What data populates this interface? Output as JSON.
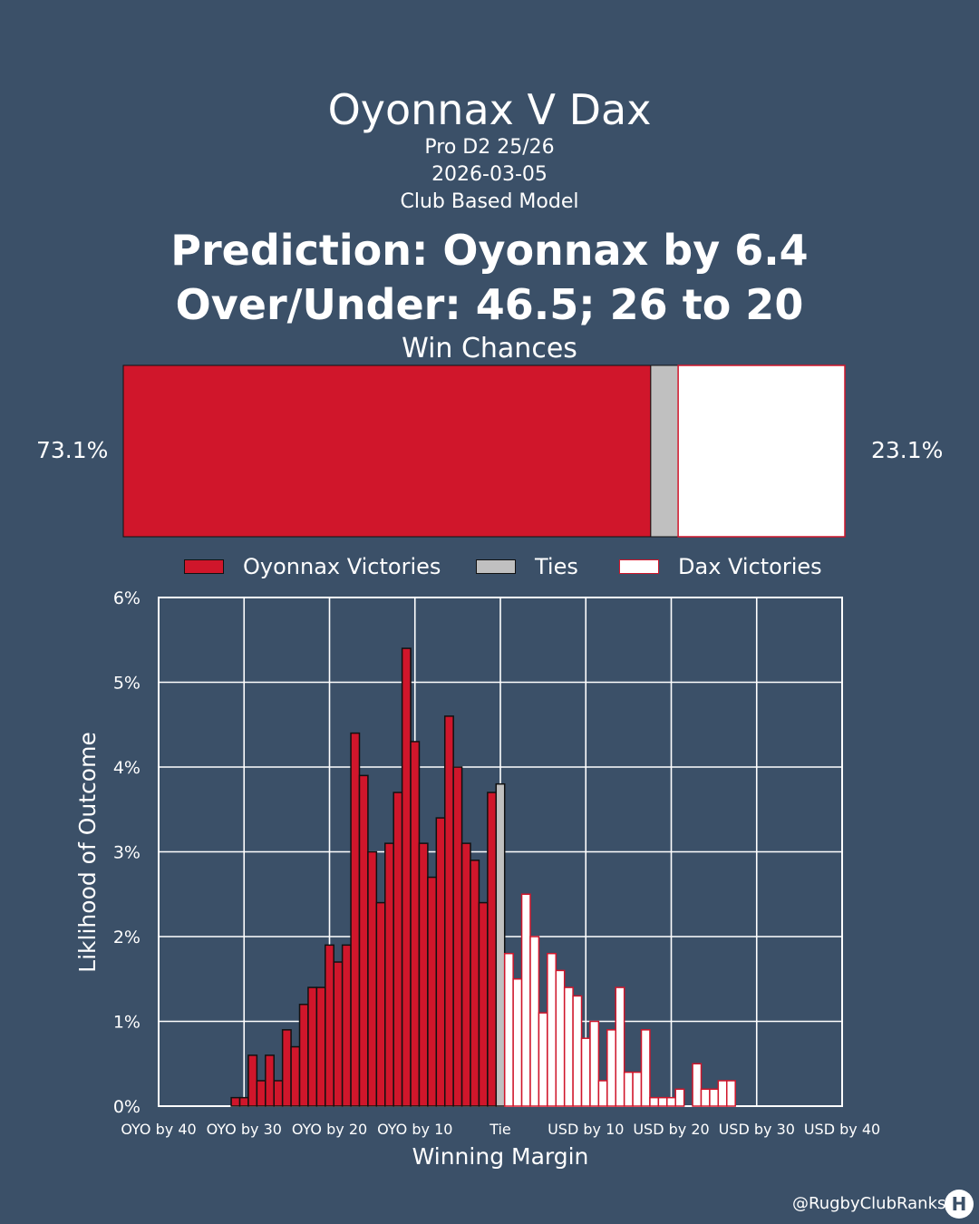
{
  "header": {
    "title": "Oyonnax V Dax",
    "competition": "Pro D2 25/26",
    "date": "2026-03-05",
    "model": "Club Based Model",
    "prediction": "Prediction: Oyonnax by 6.4",
    "over_under": "Over/Under: 46.5; 26 to 20"
  },
  "win_chances": {
    "title": "Win Chances",
    "home_pct": 73.1,
    "tie_pct": 3.8,
    "away_pct": 23.1,
    "home_label": "73.1%",
    "away_label": "23.1%"
  },
  "legend": {
    "home": "Oyonnax Victories",
    "tie": "Ties",
    "away": "Dax Victories"
  },
  "colors": {
    "background": "#3b5068",
    "home": "#d0162b",
    "tie": "#c0c0c0",
    "away": "#ffffff",
    "away_edge": "#d0162b",
    "grid": "#ffffff"
  },
  "chart_data": {
    "type": "bar",
    "xlabel": "Winning Margin",
    "ylabel": "Liklihood of Outcome",
    "xlim": [
      -40,
      40
    ],
    "ylim": [
      0,
      6
    ],
    "grid": true,
    "x_ticks": [
      "OYO by 40",
      "OYO by 30",
      "OYO by 20",
      "OYO by 10",
      "Tie",
      "USD by 10",
      "USD by 20",
      "USD by 30",
      "USD by 40"
    ],
    "y_ticks": [
      "0%",
      "1%",
      "2%",
      "3%",
      "4%",
      "5%",
      "6%"
    ],
    "series": [
      {
        "name": "Oyonnax Victories",
        "margins": [
          -31,
          -30,
          -29,
          -28,
          -27,
          -26,
          -25,
          -24,
          -23,
          -22,
          -21,
          -20,
          -19,
          -18,
          -17,
          -16,
          -15,
          -14,
          -13,
          -12,
          -11,
          -10,
          -9,
          -8,
          -7,
          -6,
          -5,
          -4,
          -3,
          -2,
          -1
        ],
        "values": [
          0.1,
          0.1,
          0.6,
          0.3,
          0.6,
          0.3,
          0.9,
          0.7,
          1.2,
          1.4,
          1.4,
          1.9,
          1.7,
          1.9,
          4.4,
          3.9,
          3.0,
          2.4,
          3.1,
          3.7,
          5.4,
          4.3,
          3.1,
          2.7,
          3.4,
          4.6,
          4.0,
          3.1,
          2.9,
          2.4,
          3.7
        ]
      },
      {
        "name": "Ties",
        "margins": [
          0
        ],
        "values": [
          3.8
        ]
      },
      {
        "name": "Dax Victories",
        "margins": [
          1,
          2,
          3,
          4,
          5,
          6,
          7,
          8,
          9,
          10,
          11,
          12,
          13,
          14,
          15,
          16,
          17,
          18,
          19,
          20,
          21,
          22,
          23,
          24,
          25,
          26,
          27
        ],
        "values": [
          1.8,
          1.5,
          2.5,
          2.0,
          1.1,
          1.8,
          1.6,
          1.4,
          1.3,
          0.8,
          1.0,
          0.3,
          0.9,
          1.4,
          0.4,
          0.4,
          0.9,
          0.1,
          0.1,
          0.1,
          0.2,
          0.0,
          0.5,
          0.2,
          0.2,
          0.3,
          0.3
        ]
      }
    ]
  },
  "footer": {
    "handle": "@RugbyClubRanks",
    "logo": "H"
  }
}
